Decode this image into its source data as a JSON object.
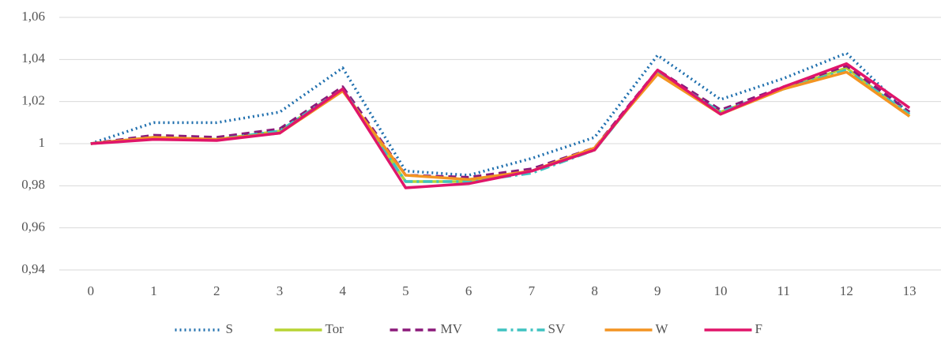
{
  "chart_data": {
    "type": "line",
    "categories": [
      "0",
      "1",
      "2",
      "3",
      "4",
      "5",
      "6",
      "7",
      "8",
      "9",
      "10",
      "11",
      "12",
      "13"
    ],
    "ylim": [
      0.94,
      1.06
    ],
    "yticks": [
      {
        "value": 0.94,
        "label": "0,94"
      },
      {
        "value": 0.96,
        "label": "0,96"
      },
      {
        "value": 0.98,
        "label": "0,98"
      },
      1,
      {
        "value": 1.02,
        "label": "1,02"
      },
      {
        "value": 1.04,
        "label": "1,04"
      },
      {
        "value": 1.06,
        "label": "1,06"
      }
    ],
    "grid": true,
    "legend": "bottom",
    "series": [
      {
        "name": "S",
        "color": "#1f6fae",
        "dash": "dot",
        "values": [
          1.0,
          1.01,
          1.01,
          1.015,
          1.036,
          0.987,
          0.985,
          0.993,
          1.003,
          1.042,
          1.021,
          1.031,
          1.043,
          1.014
        ]
      },
      {
        "name": "Tor",
        "color": "#b7d433",
        "dash": "solid",
        "values": [
          1.0,
          1.003,
          1.002,
          1.006,
          1.026,
          0.982,
          0.982,
          0.987,
          0.997,
          1.034,
          1.015,
          1.026,
          1.036,
          1.013
        ]
      },
      {
        "name": "MV",
        "color": "#8b1a7a",
        "dash": "dash",
        "values": [
          1.0,
          1.004,
          1.003,
          1.007,
          1.027,
          0.985,
          0.984,
          0.988,
          0.998,
          1.035,
          1.016,
          1.027,
          1.037,
          1.015
        ]
      },
      {
        "name": "SV",
        "color": "#3fc2c0",
        "dash": "dashdot",
        "values": [
          1.0,
          1.003,
          1.002,
          1.006,
          1.026,
          0.982,
          0.982,
          0.986,
          0.997,
          1.034,
          1.015,
          1.026,
          1.035,
          1.014
        ]
      },
      {
        "name": "W",
        "color": "#f39422",
        "dash": "solid",
        "values": [
          1.0,
          1.003,
          1.002,
          1.005,
          1.025,
          0.985,
          0.983,
          0.987,
          0.998,
          1.033,
          1.014,
          1.026,
          1.034,
          1.013
        ]
      },
      {
        "name": "F",
        "color": "#e0156a",
        "dash": "solid",
        "values": [
          1.0,
          1.002,
          1.0015,
          1.005,
          1.026,
          0.979,
          0.981,
          0.987,
          0.997,
          1.035,
          1.014,
          1.027,
          1.038,
          1.017
        ]
      }
    ]
  }
}
